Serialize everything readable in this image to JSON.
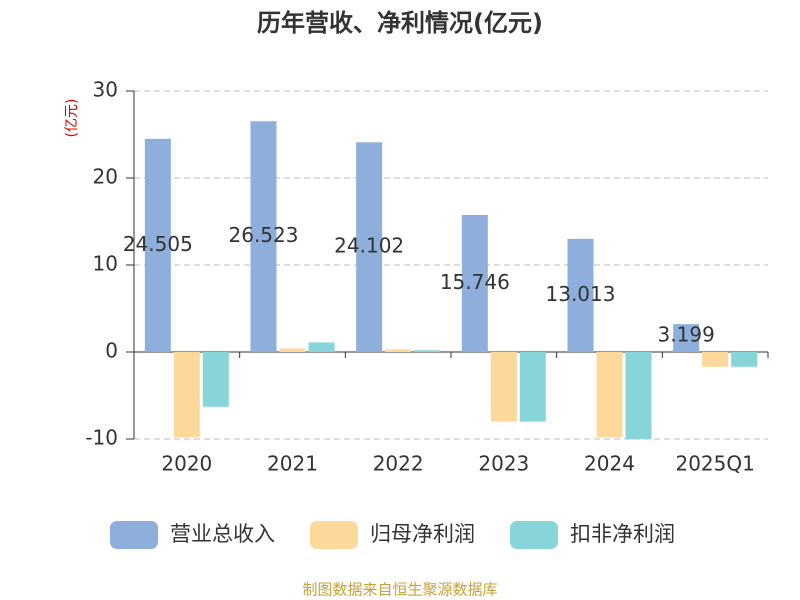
{
  "chart_data": {
    "type": "bar",
    "title": "历年营收、净利情况(亿元)",
    "y_label": "(亿元)",
    "categories": [
      "2020",
      "2021",
      "2022",
      "2023",
      "2024",
      "2025Q1"
    ],
    "series": [
      {
        "name": "营业总收入",
        "color": "#8eaedb",
        "values": [
          24.505,
          26.523,
          24.102,
          15.746,
          13.013,
          3.199
        ]
      },
      {
        "name": "归母净利润",
        "color": "#fdd89b",
        "values": [
          -9.8,
          0.4,
          0.3,
          -8.0,
          -9.8,
          -1.7
        ]
      },
      {
        "name": "扣非净利润",
        "color": "#87d5d9",
        "values": [
          -6.3,
          1.1,
          0.2,
          -8.0,
          -10.0,
          -1.7
        ]
      }
    ],
    "ylim": [
      -10,
      30
    ],
    "yticks": [
      -10,
      0,
      10,
      20,
      30
    ],
    "grid": true,
    "source": "制图数据来自恒生聚源数据库"
  }
}
